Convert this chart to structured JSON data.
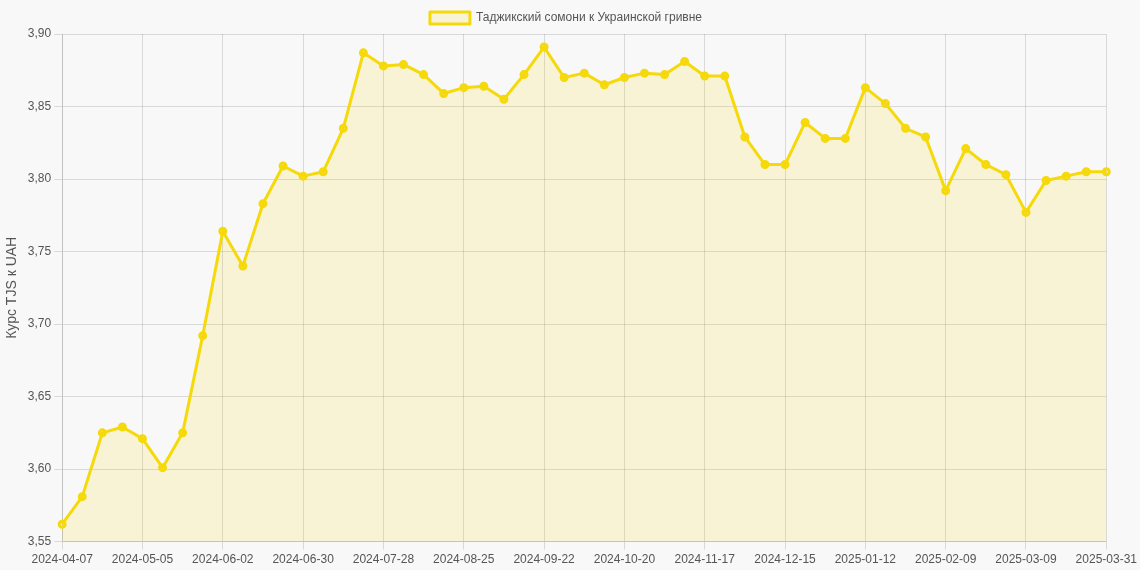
{
  "chart_data": {
    "type": "area",
    "ylabel": "Курс TJS к UAH",
    "categories": [
      "2024-04-07",
      null,
      null,
      null,
      "2024-05-05",
      null,
      null,
      null,
      "2024-06-02",
      null,
      null,
      null,
      "2024-06-30",
      null,
      null,
      null,
      "2024-07-28",
      null,
      null,
      null,
      "2024-08-25",
      null,
      null,
      null,
      "2024-09-22",
      null,
      null,
      null,
      "2024-10-20",
      null,
      null,
      null,
      "2024-11-17",
      null,
      null,
      null,
      "2024-12-15",
      null,
      null,
      null,
      "2025-01-12",
      null,
      null,
      null,
      "2025-02-09",
      null,
      null,
      null,
      "2025-03-09",
      null,
      null,
      null,
      "2025-03-31"
    ],
    "series": [
      {
        "name": "Таджикский сомони к Украинской гривне",
        "color": "#f5d90a",
        "values": [
          3.562,
          3.581,
          3.625,
          3.629,
          3.621,
          3.601,
          3.625,
          3.692,
          3.764,
          3.74,
          3.783,
          3.809,
          3.802,
          3.805,
          3.835,
          3.887,
          3.878,
          3.879,
          3.872,
          3.859,
          3.863,
          3.864,
          3.855,
          3.872,
          3.891,
          3.87,
          3.873,
          3.865,
          3.87,
          3.873,
          3.872,
          3.881,
          3.871,
          3.871,
          3.829,
          3.81,
          3.81,
          3.839,
          3.828,
          3.828,
          3.863,
          3.852,
          3.835,
          3.829,
          3.792,
          3.821,
          3.81,
          3.803,
          3.777,
          3.799,
          3.802,
          3.805,
          3.805
        ]
      }
    ],
    "ylim": [
      3.55,
      3.9
    ],
    "yticks": [
      {
        "value": 3.55,
        "label": "3,55"
      },
      {
        "value": 3.6,
        "label": "3,60"
      },
      {
        "value": 3.65,
        "label": "3,65"
      },
      {
        "value": 3.7,
        "label": "3,70"
      },
      {
        "value": 3.75,
        "label": "3,75"
      },
      {
        "value": 3.8,
        "label": "3,80"
      },
      {
        "value": 3.85,
        "label": "3,85"
      },
      {
        "value": 3.9,
        "label": "3,90"
      }
    ],
    "grid": true,
    "legend": "top",
    "marker": "circle",
    "line_style": "solid"
  }
}
